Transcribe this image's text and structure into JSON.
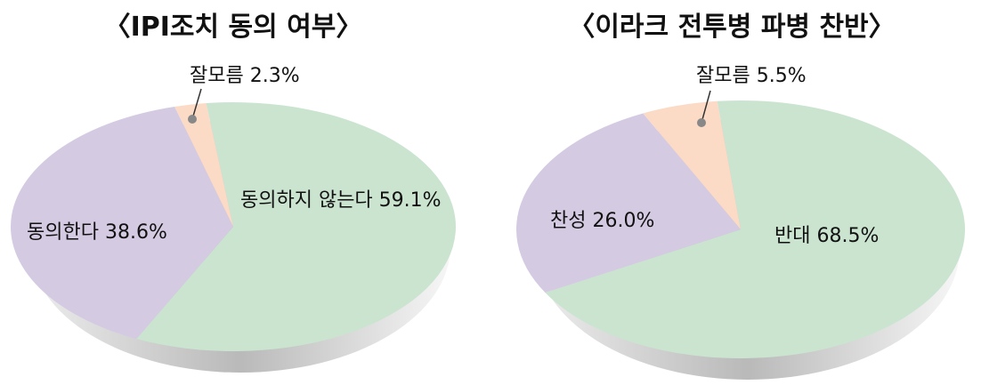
{
  "chart_data": [
    {
      "type": "pie",
      "title": "〈IPI조치 동의 여부〉",
      "slices": [
        {
          "label": "동의하지 않는다 59.1%",
          "value": 59.1,
          "color": "#cbe4d0"
        },
        {
          "label": "동의한다 38.6%",
          "value": 38.6,
          "color": "#d4cae2"
        },
        {
          "label": "잘모름 2.3%",
          "value": 2.3,
          "color": "#fbdac6"
        }
      ]
    },
    {
      "type": "pie",
      "title": "〈이라크 전투병 파병 찬반〉",
      "slices": [
        {
          "label": "반대 68.5%",
          "value": 68.5,
          "color": "#cbe4d0"
        },
        {
          "label": "찬성 26.0%",
          "value": 26.0,
          "color": "#d4cae2"
        },
        {
          "label": "잘모름 5.5%",
          "value": 5.5,
          "color": "#fbdac6"
        }
      ]
    }
  ]
}
